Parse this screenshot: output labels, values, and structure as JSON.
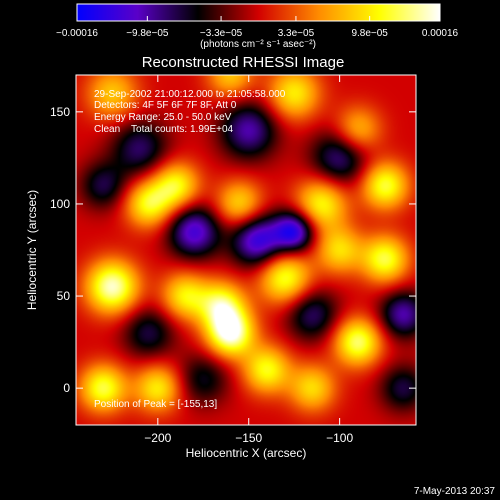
{
  "chart_data": {
    "type": "heatmap",
    "title": "Reconstructed RHESSI Image",
    "xlabel": "Heliocentric X (arcsec)",
    "ylabel": "Heliocentric Y (arcsec)",
    "xlim": [
      -245,
      -58
    ],
    "ylim": [
      -20,
      170
    ],
    "x_ticks": [
      -200,
      -150,
      -100
    ],
    "x_tick_labels": [
      "−200",
      "−150",
      "−100"
    ],
    "y_ticks": [
      0,
      50,
      100,
      150
    ],
    "y_tick_labels": [
      "0",
      "50",
      "100",
      "150"
    ],
    "colorbar": {
      "min": -0.00016,
      "max": 0.00016,
      "ticks": [
        -0.00016,
        -9.8e-05,
        -3.3e-05,
        3.3e-05,
        9.8e-05,
        0.00016
      ],
      "tick_labels": [
        "−0.00016",
        "−9.8e−05",
        "−3.3e−05",
        "3.3e−05",
        "9.8e−05",
        "0.00016"
      ],
      "label": "(photons cm⁻² s⁻¹ asec⁻²)",
      "colormap": [
        "#0000ff",
        "#5a00c8",
        "#000000",
        "#d20000",
        "#ff8c00",
        "#ffff00",
        "#ffffff"
      ]
    },
    "annotations": [
      "29-Sep-2002 21:00:12.000 to 21:05:58.000",
      "Detectors: 4F 5F 6F 7F 8F, Att 0",
      "Energy Range: 25.0 - 50.0 keV",
      "Clean    Total counts: 1.99E+04"
    ],
    "peak_label": "Position of Peak = [-155,13]",
    "peak": [
      -155,
      13
    ],
    "sources": [
      {
        "x": -160,
        "y": 30,
        "value": 0.00016,
        "w": 9
      },
      {
        "x": -225,
        "y": 55,
        "value": 0.00015,
        "w": 10
      },
      {
        "x": -230,
        "y": 0,
        "value": 0.00012,
        "w": 9
      },
      {
        "x": -185,
        "y": 50,
        "value": 0.0001,
        "w": 9
      },
      {
        "x": -90,
        "y": 25,
        "value": 0.00013,
        "w": 9
      },
      {
        "x": -75,
        "y": 70,
        "value": 0.00012,
        "w": 9
      },
      {
        "x": -130,
        "y": 60,
        "value": 0.00012,
        "w": 10
      },
      {
        "x": -165,
        "y": 45,
        "value": 0.00012,
        "w": 9
      },
      {
        "x": -140,
        "y": 10,
        "value": 0.00011,
        "w": 9
      },
      {
        "x": -205,
        "y": 100,
        "value": 0.00011,
        "w": 9
      },
      {
        "x": -110,
        "y": 100,
        "value": 0.00011,
        "w": 10
      },
      {
        "x": -75,
        "y": 110,
        "value": 0.00012,
        "w": 9
      },
      {
        "x": -190,
        "y": 110,
        "value": 0.00011,
        "w": 9
      },
      {
        "x": -125,
        "y": 160,
        "value": 0.0001,
        "w": 10
      },
      {
        "x": -155,
        "y": 100,
        "value": 9e-05,
        "w": 9
      },
      {
        "x": -225,
        "y": 160,
        "value": 8e-05,
        "w": 10
      },
      {
        "x": -100,
        "y": 75,
        "value": 9e-05,
        "w": 9
      },
      {
        "x": -200,
        "y": 0,
        "value": 0.0001,
        "w": 9
      },
      {
        "x": -115,
        "y": 0,
        "value": 9e-05,
        "w": 9
      },
      {
        "x": -90,
        "y": 140,
        "value": 8e-05,
        "w": 9
      },
      {
        "x": -160,
        "y": 170,
        "value": 8e-05,
        "w": 9
      },
      {
        "x": -145,
        "y": 80,
        "value": -0.00013,
        "w": 10
      },
      {
        "x": -125,
        "y": 85,
        "value": -0.00014,
        "w": 8
      },
      {
        "x": -180,
        "y": 85,
        "value": -0.00012,
        "w": 10
      },
      {
        "x": -150,
        "y": 140,
        "value": -0.0001,
        "w": 11
      },
      {
        "x": -100,
        "y": 125,
        "value": -9e-05,
        "w": 11
      },
      {
        "x": -210,
        "y": 130,
        "value": -8e-05,
        "w": 11
      },
      {
        "x": -205,
        "y": 30,
        "value": -7e-05,
        "w": 10
      },
      {
        "x": -65,
        "y": 40,
        "value": -0.0001,
        "w": 9
      },
      {
        "x": -175,
        "y": 5,
        "value": -6e-05,
        "w": 10
      },
      {
        "x": -115,
        "y": 40,
        "value": -8e-05,
        "w": 10
      },
      {
        "x": -65,
        "y": 0,
        "value": -7e-05,
        "w": 9
      },
      {
        "x": -230,
        "y": 110,
        "value": -7e-05,
        "w": 9
      }
    ]
  },
  "footer": {
    "timestamp": "7-May-2013 20:37"
  }
}
